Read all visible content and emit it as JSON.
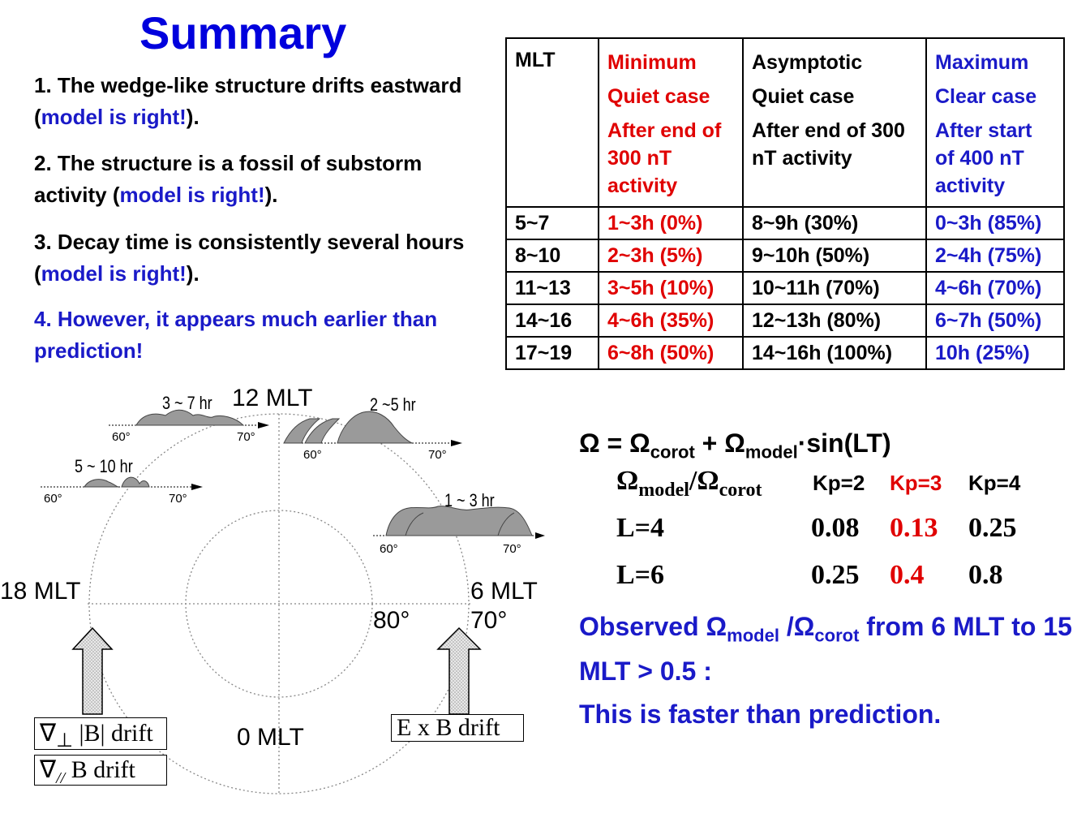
{
  "title": "Summary",
  "points": [
    {
      "prefix": "1. The wedge-like structure drifts eastward (",
      "model": "model is right!",
      "suffix": ")."
    },
    {
      "prefix": "2. The structure is a fossil of substorm activity (",
      "model": "model is right!",
      "suffix": ")."
    },
    {
      "prefix": "3. Decay time is consistently several hours (",
      "model": "model is right!",
      "suffix": ")."
    },
    {
      "text": "4. However, it appears much earlier than prediction!"
    }
  ],
  "table": {
    "header": {
      "mlt": "MLT",
      "minimum": [
        "Minimum",
        "Quiet case",
        "After end of 300 nT activity"
      ],
      "asymptotic": [
        "Asymptotic",
        "Quiet case",
        "After end of 300 nT activity"
      ],
      "maximum": [
        "Maximum",
        "Clear case",
        "After start of 400 nT activity"
      ]
    },
    "rows": [
      [
        "5~7",
        "1~3h (0%)",
        "8~9h (30%)",
        "0~3h (85%)"
      ],
      [
        "8~10",
        "2~3h (5%)",
        "9~10h (50%)",
        "2~4h (75%)"
      ],
      [
        "11~13",
        "3~5h (10%)",
        "10~11h (70%)",
        "4~6h (70%)"
      ],
      [
        "14~16",
        "4~6h (35%)",
        "12~13h (80%)",
        "6~7h (50%)"
      ],
      [
        "17~19",
        "6~8h (50%)",
        "14~16h (100%)",
        "10h (25%)"
      ]
    ]
  },
  "formula": {
    "omega": "Ω",
    "eq": " = ",
    "plus": " + ",
    "sub_corot": "corot",
    "sub_model": "model",
    "tail": "·sin(LT)"
  },
  "ratio_table": {
    "head": {
      "sub1": "model",
      "slash": "/",
      "sub2": "corot"
    },
    "kp": [
      "Kp=2",
      "Kp=3",
      "Kp=4"
    ],
    "rows": [
      {
        "label": "L=4",
        "values": [
          "0.08",
          "0.13",
          "0.25"
        ]
      },
      {
        "label": "L=6",
        "values": [
          "0.25",
          "0.4",
          "0.8"
        ]
      }
    ]
  },
  "observed": {
    "pre": "Observed Ω",
    "sub1": "model",
    "mid": " /Ω",
    "sub2": "corot",
    "post": " from 6 MLT to 15 MLT > 0.5 :"
  },
  "conclusion": "This is faster than prediction.",
  "diagram": {
    "mlt_labels": {
      "top": "12 MLT",
      "left": "18 MLT",
      "right": "6 MLT",
      "bottom": "0 MLT"
    },
    "lat_labels": {
      "inner": "80°",
      "outer": "70°"
    },
    "durations": [
      "3 ~ 7 hr",
      "2 ~5 hr",
      "5 ~ 10 hr",
      "1 ~ 3 hr"
    ],
    "tick_60": "60°",
    "tick_70": "70°",
    "gradb": {
      "nabla": "∇",
      "sym": "⊥",
      "text": " |B| drift"
    },
    "curv": {
      "nabla": "∇",
      "sym": "//",
      "text": " B drift"
    },
    "exb": "E x B drift"
  },
  "colors": {
    "title": "#0000dd",
    "blue": "#1a1ac8",
    "red": "#e00000",
    "wedge": "#9a9a9a"
  }
}
